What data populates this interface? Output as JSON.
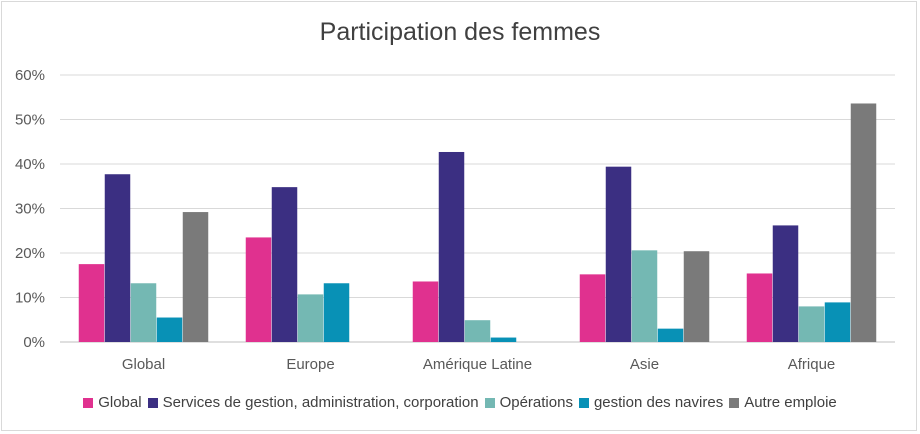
{
  "chart_data": {
    "type": "bar",
    "title": "Participation  des femmes",
    "categories": [
      "Global",
      "Europe",
      "Amérique Latine",
      "Asie",
      "Afrique"
    ],
    "y_ticks": [
      "0%",
      "10%",
      "20%",
      "30%",
      "40%",
      "50%",
      "60%"
    ],
    "ylim": [
      0,
      60
    ],
    "grid": true,
    "legend_position": "bottom",
    "series": [
      {
        "name": "Global",
        "color": "#e0318f",
        "values": [
          17.5,
          23.5,
          13.6,
          15.2,
          15.4
        ]
      },
      {
        "name": "Services de gestion, administration, corporation",
        "color": "#3b2f82",
        "values": [
          37.7,
          34.8,
          42.7,
          39.4,
          26.2
        ]
      },
      {
        "name": "Opérations",
        "color": "#74b8b3",
        "values": [
          13.2,
          10.7,
          4.9,
          20.6,
          8.0
        ]
      },
      {
        "name": "gestion des navires",
        "color": "#0891b6",
        "values": [
          5.5,
          13.2,
          1.0,
          3.0,
          8.9
        ]
      },
      {
        "name": "Autre emploie",
        "color": "#7a7a7a",
        "values": [
          29.2,
          null,
          null,
          20.4,
          53.6
        ]
      }
    ]
  }
}
